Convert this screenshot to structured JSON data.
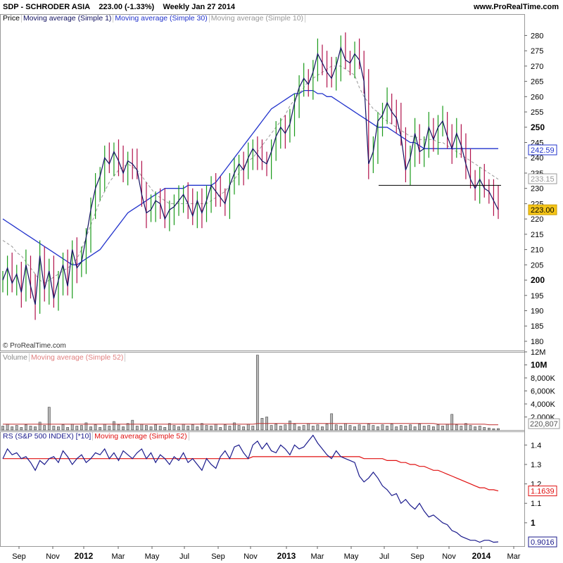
{
  "header": {
    "symbol": "SDP - SCHRODER ASIA",
    "price_change": "223.00 (-1.33%)",
    "interval_date": "Weekly  Jan 27 2014",
    "website": "www.ProRealTime.com"
  },
  "legend": {
    "price": "Price",
    "ma1": "Moving average (Simple 1)",
    "ma30": "Moving average (Simple 30)",
    "ma10": "Moving average (Simple 10)",
    "volume": "Volume",
    "vol_ma": "Moving average (Simple 52)",
    "rs": "RS (S&P 500 INDEX) [*10]",
    "rs_ma": "Moving average (Simple 52)"
  },
  "copyright": "© ProRealTime.com",
  "colors": {
    "up": "#1a9a1a",
    "down": "#b0104a",
    "ma1": "#101060",
    "ma30": "#2233cc",
    "ma10": "#999999",
    "rs": "#1a1a8c",
    "rs_ma": "#e01010"
  },
  "chart_data": [
    {
      "type": "line",
      "panel": "price",
      "x_ticks": [
        "Sep",
        "Nov",
        "2012",
        "Mar",
        "May",
        "Jul",
        "Sep",
        "Nov",
        "2013",
        "Mar",
        "May",
        "Jul",
        "Sep",
        "Nov",
        "2014",
        "Mar"
      ],
      "ylim": [
        177,
        287
      ],
      "y_ticks": [
        "280",
        "275",
        "270",
        "265",
        "260",
        "255",
        "250",
        "245",
        "240",
        "235",
        "230",
        "225",
        "220",
        "215",
        "210",
        "205",
        "200",
        "195",
        "190",
        "185",
        "180"
      ],
      "last_labels": {
        "ma30": "242.59",
        "ma10": "233.15",
        "price": "223.00"
      },
      "support_level": 231,
      "series": [
        {
          "name": "Moving average (Simple 1)",
          "values": [
            200,
            204,
            199,
            202,
            196,
            205,
            198,
            192,
            208,
            197,
            203,
            194,
            200,
            205,
            198,
            210,
            204,
            206,
            214,
            223,
            230,
            234,
            240,
            238,
            242,
            239,
            235,
            239,
            238,
            236,
            228,
            222,
            223,
            226,
            225,
            220,
            223,
            224,
            226,
            228,
            225,
            221,
            226,
            222,
            226,
            231,
            229,
            227,
            225,
            231,
            235,
            238,
            236,
            240,
            243,
            241,
            239,
            238,
            242,
            247,
            250,
            248,
            251,
            258,
            263,
            266,
            264,
            268,
            274,
            271,
            268,
            266,
            270,
            276,
            272,
            271,
            274,
            272,
            265,
            238,
            242,
            252,
            254,
            258,
            255,
            253,
            247,
            236,
            240,
            248,
            242,
            243,
            250,
            246,
            250,
            252,
            247,
            243,
            248,
            244,
            238,
            233,
            230,
            233,
            230,
            229,
            226,
            223
          ]
        },
        {
          "name": "Moving average (Simple 30)",
          "values": [
            220,
            219,
            218,
            217,
            216,
            215,
            214,
            213,
            212,
            211,
            210,
            209,
            208,
            207,
            206,
            205,
            205,
            206,
            207,
            208,
            209,
            210,
            212,
            214,
            216,
            218,
            220,
            222,
            223,
            224,
            225,
            226,
            227,
            228,
            229,
            230,
            230,
            230,
            230,
            230,
            231,
            231,
            231,
            231,
            231,
            231,
            232,
            234,
            236,
            238,
            240,
            242,
            244,
            246,
            248,
            250,
            252,
            254,
            256,
            257,
            258,
            259,
            260,
            261,
            261,
            262,
            262,
            262,
            261,
            261,
            260,
            260,
            259,
            258,
            257,
            256,
            255,
            254,
            253,
            252,
            251,
            250,
            250,
            250,
            249,
            248,
            247,
            246,
            245,
            245,
            244,
            243,
            243,
            243,
            243,
            243,
            243,
            243,
            243,
            243,
            243,
            243,
            243,
            243,
            243,
            243,
            243,
            243
          ]
        },
        {
          "name": "Moving average (Simple 10)",
          "values": [
            213,
            212,
            211,
            209,
            208,
            206,
            204,
            202,
            200,
            199,
            200,
            201,
            202,
            203,
            204,
            205,
            207,
            210,
            214,
            218,
            222,
            226,
            229,
            232,
            234,
            236,
            237,
            238,
            237,
            236,
            234,
            232,
            230,
            228,
            227,
            226,
            225,
            225,
            225,
            225,
            225,
            225,
            225,
            225,
            225,
            226,
            227,
            228,
            229,
            231,
            233,
            235,
            237,
            239,
            240,
            242,
            244,
            246,
            248,
            250,
            252,
            254,
            257,
            259,
            261,
            263,
            265,
            266,
            267,
            268,
            269,
            270,
            270,
            270,
            269,
            268,
            267,
            263,
            260,
            258,
            256,
            255,
            253,
            252,
            251,
            250,
            249,
            248,
            247,
            247,
            246,
            246,
            246,
            246,
            245,
            245,
            244,
            243,
            242,
            241,
            240,
            239,
            238,
            237,
            236,
            235,
            234,
            233
          ]
        }
      ]
    },
    {
      "type": "bar",
      "panel": "volume",
      "ylim": [
        0,
        12000000
      ],
      "y_ticks": [
        "12M",
        "10M",
        "8,000K",
        "6,000K",
        "4,000K",
        "2,000K"
      ],
      "last_label": "220,807",
      "series": [
        {
          "name": "Volume",
          "values": [
            600000,
            900000,
            500000,
            700000,
            400000,
            800000,
            600000,
            500000,
            1200000,
            700000,
            3500000,
            600000,
            500000,
            800000,
            400000,
            900000,
            600000,
            700000,
            1100000,
            500000,
            800000,
            400000,
            900000,
            600000,
            1300000,
            800000,
            500000,
            1000000,
            1500000,
            600000,
            900000,
            700000,
            500000,
            800000,
            600000,
            400000,
            1000000,
            700000,
            500000,
            900000,
            600000,
            800000,
            500000,
            1000000,
            700000,
            600000,
            900000,
            400000,
            800000,
            600000,
            1100000,
            700000,
            500000,
            900000,
            600000,
            11500000,
            1800000,
            2000000,
            700000,
            900000,
            600000,
            800000,
            1400000,
            900000,
            500000,
            700000,
            1000000,
            600000,
            800000,
            500000,
            900000,
            2500000,
            800000,
            600000,
            1000000,
            700000,
            500000,
            800000,
            600000,
            900000,
            700000,
            500000,
            800000,
            600000,
            900000,
            500000,
            700000,
            600000,
            800000,
            500000,
            900000,
            600000,
            700000,
            500000,
            800000,
            600000,
            900000,
            2400000,
            800000,
            600000,
            1000000,
            700000,
            500000,
            600000,
            400000,
            300000,
            200000,
            220807
          ]
        },
        {
          "name": "Moving average (Simple 52)",
          "values": [
            900000,
            900000,
            900000,
            900000,
            900000,
            900000,
            900000,
            900000,
            900000,
            900000,
            900000,
            900000,
            900000,
            900000,
            900000,
            900000,
            900000,
            900000,
            900000,
            900000,
            900000,
            900000,
            900000,
            900000,
            900000,
            900000,
            900000,
            900000,
            900000,
            900000,
            900000,
            900000,
            900000,
            900000,
            900000,
            900000,
            900000,
            900000,
            900000,
            900000,
            900000,
            900000,
            900000,
            900000,
            900000,
            900000,
            900000,
            900000,
            900000,
            900000,
            900000,
            900000,
            900000,
            900000,
            900000,
            1000000,
            1000000,
            1000000,
            1000000,
            1000000,
            1000000,
            1000000,
            1000000,
            1000000,
            1000000,
            1000000,
            1000000,
            1000000,
            1000000,
            1000000,
            1000000,
            1000000,
            1000000,
            1000000,
            1000000,
            1000000,
            1000000,
            1000000,
            1000000,
            1000000,
            1000000,
            1000000,
            1000000,
            1000000,
            1000000,
            1000000,
            1000000,
            1000000,
            1000000,
            1000000,
            1000000,
            1000000,
            1000000,
            1000000,
            900000,
            900000,
            900000,
            900000,
            900000,
            900000,
            900000,
            900000,
            900000,
            900000,
            900000,
            800000,
            800000,
            800000
          ]
        }
      ]
    },
    {
      "type": "line",
      "panel": "rs",
      "ylim": [
        0.88,
        1.47
      ],
      "y_ticks": [
        "1.4",
        "1.3",
        "1.2",
        "1.1",
        "1"
      ],
      "last_labels": {
        "rs_ma": "1.1639",
        "rs": "0.9016"
      },
      "series": [
        {
          "name": "RS (S&P 500 INDEX) [*10]",
          "values": [
            1.33,
            1.38,
            1.35,
            1.36,
            1.33,
            1.34,
            1.31,
            1.27,
            1.32,
            1.3,
            1.33,
            1.34,
            1.31,
            1.37,
            1.34,
            1.3,
            1.33,
            1.35,
            1.31,
            1.33,
            1.36,
            1.35,
            1.38,
            1.33,
            1.36,
            1.32,
            1.37,
            1.35,
            1.33,
            1.36,
            1.38,
            1.33,
            1.36,
            1.31,
            1.35,
            1.33,
            1.3,
            1.34,
            1.32,
            1.36,
            1.31,
            1.33,
            1.3,
            1.27,
            1.33,
            1.3,
            1.28,
            1.34,
            1.37,
            1.33,
            1.39,
            1.4,
            1.36,
            1.33,
            1.4,
            1.42,
            1.38,
            1.41,
            1.37,
            1.36,
            1.4,
            1.38,
            1.35,
            1.4,
            1.38,
            1.39,
            1.42,
            1.45,
            1.41,
            1.38,
            1.35,
            1.33,
            1.37,
            1.34,
            1.33,
            1.32,
            1.31,
            1.24,
            1.21,
            1.23,
            1.26,
            1.23,
            1.19,
            1.17,
            1.14,
            1.15,
            1.1,
            1.12,
            1.09,
            1.07,
            1.1,
            1.06,
            1.03,
            1.04,
            1.02,
            1.0,
            0.99,
            0.96,
            0.95,
            0.93,
            0.92,
            0.91,
            0.91,
            0.9,
            0.91,
            0.91,
            0.9,
            0.9016
          ]
        },
        {
          "name": "Moving average (Simple 52)",
          "values": [
            1.33,
            1.33,
            1.33,
            1.33,
            1.33,
            1.33,
            1.33,
            1.33,
            1.33,
            1.33,
            1.33,
            1.33,
            1.33,
            1.33,
            1.33,
            1.33,
            1.33,
            1.33,
            1.33,
            1.33,
            1.33,
            1.33,
            1.33,
            1.33,
            1.33,
            1.33,
            1.33,
            1.33,
            1.33,
            1.33,
            1.33,
            1.33,
            1.33,
            1.33,
            1.33,
            1.33,
            1.33,
            1.33,
            1.33,
            1.33,
            1.33,
            1.33,
            1.33,
            1.33,
            1.33,
            1.33,
            1.33,
            1.33,
            1.33,
            1.33,
            1.33,
            1.33,
            1.33,
            1.33,
            1.34,
            1.34,
            1.34,
            1.34,
            1.34,
            1.34,
            1.34,
            1.34,
            1.34,
            1.34,
            1.34,
            1.34,
            1.34,
            1.34,
            1.34,
            1.34,
            1.34,
            1.34,
            1.34,
            1.34,
            1.34,
            1.34,
            1.34,
            1.34,
            1.33,
            1.33,
            1.33,
            1.33,
            1.33,
            1.32,
            1.32,
            1.32,
            1.31,
            1.31,
            1.3,
            1.3,
            1.29,
            1.29,
            1.28,
            1.27,
            1.27,
            1.26,
            1.25,
            1.24,
            1.23,
            1.22,
            1.21,
            1.2,
            1.19,
            1.18,
            1.18,
            1.17,
            1.17,
            1.1639
          ]
        }
      ]
    }
  ]
}
